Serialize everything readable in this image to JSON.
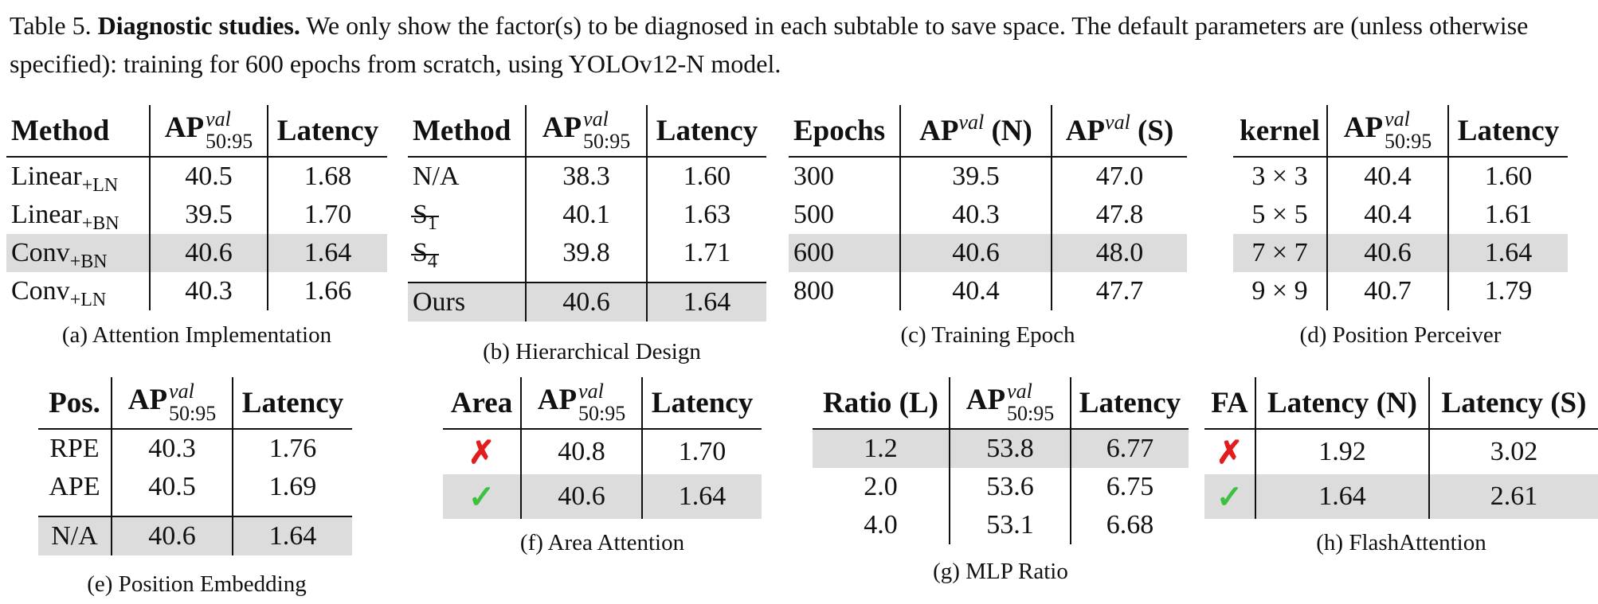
{
  "caption": {
    "label": "Table 5.",
    "bold": "Diagnostic studies.",
    "text": "We only show the factor(s) to be diagnosed in each subtable to save space. The default parameters are (unless otherwise specified): training for 600 epochs from scratch, using YOLOv12-N model."
  },
  "ap": {
    "base": "AP",
    "sup": "val",
    "sub": "50:95"
  },
  "tables": {
    "a": {
      "caption": "(a) Attention Implementation",
      "headers": {
        "method": "Method",
        "latency": "Latency"
      },
      "rows": [
        {
          "name": "Linear",
          "sub": "+LN",
          "ap": "40.5",
          "lat": "1.68"
        },
        {
          "name": "Linear",
          "sub": "+BN",
          "ap": "39.5",
          "lat": "1.70"
        },
        {
          "name": "Conv",
          "sub": "+BN",
          "ap": "40.6",
          "lat": "1.64"
        },
        {
          "name": "Conv",
          "sub": "+LN",
          "ap": "40.3",
          "lat": "1.66"
        }
      ]
    },
    "b": {
      "caption": "(b) Hierarchical Design",
      "headers": {
        "method": "Method",
        "latency": "Latency"
      },
      "rows": [
        {
          "name": "N/A",
          "ap": "38.3",
          "lat": "1.60"
        },
        {
          "name": "S",
          "sub": "1",
          "ap": "40.1",
          "lat": "1.63"
        },
        {
          "name": "S",
          "sub": "4",
          "ap": "39.8",
          "lat": "1.71"
        }
      ],
      "ours": {
        "name": "Ours",
        "ap": "40.6",
        "lat": "1.64"
      }
    },
    "c": {
      "caption": "(c) Training Epoch",
      "headers": {
        "epochs": "Epochs",
        "n": "(N)",
        "s": "(S)"
      },
      "rows": [
        {
          "ep": "300",
          "n": "39.5",
          "s": "47.0"
        },
        {
          "ep": "500",
          "n": "40.3",
          "s": "47.8"
        },
        {
          "ep": "600",
          "n": "40.6",
          "s": "48.0"
        },
        {
          "ep": "800",
          "n": "40.4",
          "s": "47.7"
        }
      ]
    },
    "d": {
      "caption": "(d) Position Perceiver",
      "headers": {
        "kernel": "kernel",
        "latency": "Latency"
      },
      "rows": [
        {
          "k": "3 × 3",
          "ap": "40.4",
          "lat": "1.60"
        },
        {
          "k": "5 × 5",
          "ap": "40.4",
          "lat": "1.61"
        },
        {
          "k": "7 × 7",
          "ap": "40.6",
          "lat": "1.64"
        },
        {
          "k": "9 × 9",
          "ap": "40.7",
          "lat": "1.79"
        }
      ]
    },
    "e": {
      "caption": "(e) Position Embedding",
      "headers": {
        "pos": "Pos.",
        "latency": "Latency"
      },
      "rows": [
        {
          "p": "RPE",
          "ap": "40.3",
          "lat": "1.76"
        },
        {
          "p": "APE",
          "ap": "40.5",
          "lat": "1.69"
        }
      ],
      "na": {
        "p": "N/A",
        "ap": "40.6",
        "lat": "1.64"
      }
    },
    "f": {
      "caption": "(f) Area Attention",
      "headers": {
        "area": "Area",
        "latency": "Latency"
      },
      "rows": [
        {
          "mark": "✗",
          "ap": "40.8",
          "lat": "1.70"
        },
        {
          "mark": "✓",
          "ap": "40.6",
          "lat": "1.64"
        }
      ]
    },
    "g": {
      "caption": "(g) MLP Ratio",
      "headers": {
        "ratio": "Ratio (L)",
        "latency": "Latency"
      },
      "rows": [
        {
          "r": "1.2",
          "ap": "53.8",
          "lat": "6.77"
        },
        {
          "r": "2.0",
          "ap": "53.6",
          "lat": "6.75"
        },
        {
          "r": "4.0",
          "ap": "53.1",
          "lat": "6.68"
        }
      ]
    },
    "h": {
      "caption": "(h) FlashAttention",
      "headers": {
        "fa": "FA",
        "latn": "Latency (N)",
        "lats": "Latency (S)"
      },
      "rows": [
        {
          "mark": "✗",
          "n": "1.92",
          "s": "3.02"
        },
        {
          "mark": "✓",
          "n": "1.64",
          "s": "2.61"
        }
      ]
    }
  },
  "colors": {
    "highlight": "#dcdcdc",
    "cross": "#e21d1d",
    "check": "#3dc03d"
  }
}
